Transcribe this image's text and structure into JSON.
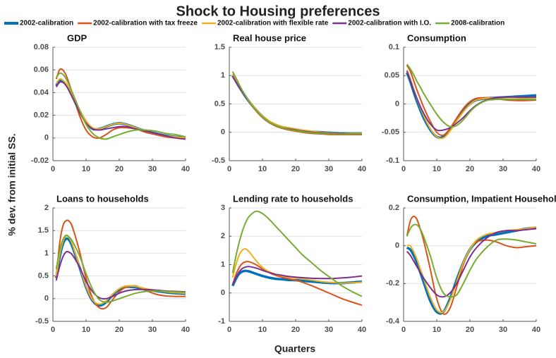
{
  "title": "Shock to Housing preferences",
  "ylabel": "% dev. from initial SS.",
  "xlabel": "Quarters",
  "chart_data": [
    {
      "type": "line",
      "title": "GDP",
      "xlim": [
        0,
        40
      ],
      "xticks": [
        0,
        10,
        20,
        30,
        40
      ],
      "ylim": [
        -0.02,
        0.08
      ],
      "yticks": [
        -0.02,
        0,
        0.02,
        0.04,
        0.06,
        0.08
      ],
      "grid": true,
      "x": [
        1,
        2,
        3,
        4,
        5,
        6,
        8,
        10,
        12,
        14,
        16,
        18,
        20,
        22,
        25,
        28,
        31,
        34,
        37,
        40
      ],
      "series": [
        {
          "name": "2002-calibration",
          "color": "#0072bd",
          "values": [
            0.046,
            0.05,
            0.05,
            0.047,
            0.042,
            0.036,
            0.024,
            0.014,
            0.008,
            0.008,
            0.01,
            0.012,
            0.013,
            0.012,
            0.009,
            0.006,
            0.004,
            0.002,
            0.001,
            0.0
          ]
        },
        {
          "name": "2002-calibration with tax freeze",
          "color": "#d95319",
          "values": [
            0.052,
            0.06,
            0.06,
            0.055,
            0.047,
            0.038,
            0.02,
            0.007,
            0.001,
            0.0,
            0.003,
            0.007,
            0.009,
            0.009,
            0.008,
            0.005,
            0.003,
            0.001,
            0.0,
            -0.001
          ]
        },
        {
          "name": "2002-calibration with flexible rate",
          "color": "#edb120",
          "values": [
            0.048,
            0.052,
            0.051,
            0.048,
            0.043,
            0.037,
            0.025,
            0.015,
            0.009,
            0.008,
            0.01,
            0.012,
            0.013,
            0.012,
            0.009,
            0.006,
            0.004,
            0.002,
            0.001,
            0.0
          ]
        },
        {
          "name": "2002-calibration with I.O.",
          "color": "#7e2f8e",
          "values": [
            0.045,
            0.049,
            0.049,
            0.046,
            0.041,
            0.035,
            0.023,
            0.013,
            0.008,
            0.007,
            0.008,
            0.009,
            0.01,
            0.01,
            0.008,
            0.006,
            0.004,
            0.002,
            0.0,
            -0.001
          ]
        },
        {
          "name": "2008-calibration",
          "color": "#77ac30",
          "values": [
            0.053,
            0.057,
            0.056,
            0.052,
            0.046,
            0.039,
            0.025,
            0.012,
            0.004,
            0.0,
            -0.001,
            0.001,
            0.003,
            0.005,
            0.007,
            0.007,
            0.006,
            0.004,
            0.003,
            0.001
          ]
        }
      ]
    },
    {
      "type": "line",
      "title": "Real house price",
      "xlim": [
        0,
        40
      ],
      "xticks": [
        0,
        10,
        20,
        30,
        40
      ],
      "ylim": [
        -0.5,
        1.5
      ],
      "yticks": [
        -0.5,
        0,
        0.5,
        1,
        1.5
      ],
      "grid": true,
      "x": [
        1,
        2,
        3,
        4,
        5,
        6,
        8,
        10,
        12,
        14,
        16,
        18,
        20,
        22,
        25,
        28,
        31,
        34,
        37,
        40
      ],
      "series": [
        {
          "name": "2002-calibration",
          "color": "#0072bd",
          "values": [
            1.0,
            0.9,
            0.8,
            0.71,
            0.62,
            0.54,
            0.4,
            0.28,
            0.19,
            0.13,
            0.09,
            0.07,
            0.05,
            0.03,
            0.01,
            0.0,
            -0.01,
            -0.02,
            -0.02,
            -0.02
          ]
        },
        {
          "name": "2002-calibration with tax freeze",
          "color": "#d95319",
          "values": [
            1.02,
            0.93,
            0.82,
            0.72,
            0.62,
            0.53,
            0.38,
            0.26,
            0.17,
            0.11,
            0.07,
            0.04,
            0.02,
            0.0,
            -0.02,
            -0.03,
            -0.04,
            -0.04,
            -0.04,
            -0.04
          ]
        },
        {
          "name": "2002-calibration with flexible rate",
          "color": "#edb120",
          "values": [
            1.01,
            0.91,
            0.81,
            0.72,
            0.63,
            0.55,
            0.41,
            0.29,
            0.2,
            0.14,
            0.1,
            0.08,
            0.06,
            0.04,
            0.02,
            0.0,
            -0.01,
            -0.02,
            -0.02,
            -0.02
          ]
        },
        {
          "name": "2002-calibration with I.O.",
          "color": "#7e2f8e",
          "values": [
            0.99,
            0.89,
            0.79,
            0.7,
            0.61,
            0.53,
            0.39,
            0.27,
            0.18,
            0.12,
            0.08,
            0.06,
            0.04,
            0.02,
            0.0,
            -0.01,
            -0.02,
            -0.02,
            -0.03,
            -0.03
          ]
        },
        {
          "name": "2008-calibration",
          "color": "#77ac30",
          "values": [
            1.07,
            0.96,
            0.84,
            0.73,
            0.63,
            0.54,
            0.39,
            0.27,
            0.18,
            0.12,
            0.08,
            0.05,
            0.03,
            0.01,
            -0.01,
            -0.02,
            -0.03,
            -0.03,
            -0.03,
            -0.03
          ]
        }
      ]
    },
    {
      "type": "line",
      "title": "Consumption",
      "xlim": [
        0,
        40
      ],
      "xticks": [
        0,
        10,
        20,
        30,
        40
      ],
      "ylim": [
        -0.1,
        0.1
      ],
      "yticks": [
        -0.1,
        -0.05,
        0,
        0.05,
        0.1
      ],
      "grid": true,
      "x": [
        1,
        2,
        3,
        4,
        5,
        6,
        8,
        10,
        12,
        14,
        16,
        18,
        20,
        22,
        25,
        28,
        31,
        34,
        37,
        40
      ],
      "series": [
        {
          "name": "2002-calibration",
          "color": "#0072bd",
          "values": [
            0.055,
            0.04,
            0.022,
            0.005,
            -0.01,
            -0.024,
            -0.045,
            -0.058,
            -0.058,
            -0.045,
            -0.028,
            -0.012,
            0.0,
            0.007,
            0.01,
            0.011,
            0.012,
            0.013,
            0.014,
            0.015
          ]
        },
        {
          "name": "2002-calibration with tax freeze",
          "color": "#d95319",
          "values": [
            0.068,
            0.058,
            0.042,
            0.025,
            0.01,
            -0.005,
            -0.03,
            -0.05,
            -0.055,
            -0.043,
            -0.025,
            -0.008,
            0.004,
            0.01,
            0.011,
            0.009,
            0.007,
            0.006,
            0.006,
            0.007
          ]
        },
        {
          "name": "2002-calibration with flexible rate",
          "color": "#edb120",
          "values": [
            0.06,
            0.045,
            0.027,
            0.009,
            -0.006,
            -0.02,
            -0.043,
            -0.058,
            -0.06,
            -0.048,
            -0.03,
            -0.014,
            -0.001,
            0.007,
            0.01,
            0.011,
            0.011,
            0.011,
            0.01,
            0.009
          ]
        },
        {
          "name": "2002-calibration with I.O.",
          "color": "#7e2f8e",
          "values": [
            0.058,
            0.042,
            0.025,
            0.01,
            -0.004,
            -0.016,
            -0.035,
            -0.046,
            -0.046,
            -0.042,
            -0.034,
            -0.024,
            -0.012,
            -0.002,
            0.007,
            0.011,
            0.012,
            0.012,
            0.012,
            0.012
          ]
        },
        {
          "name": "2008-calibration",
          "color": "#77ac30",
          "values": [
            0.07,
            0.062,
            0.052,
            0.04,
            0.03,
            0.019,
            0.0,
            -0.018,
            -0.032,
            -0.04,
            -0.038,
            -0.028,
            -0.014,
            -0.003,
            0.006,
            0.008,
            0.008,
            0.008,
            0.008,
            0.008
          ]
        }
      ]
    },
    {
      "type": "line",
      "title": "Loans to households",
      "xlim": [
        0,
        40
      ],
      "xticks": [
        0,
        10,
        20,
        30,
        40
      ],
      "ylim": [
        -0.5,
        2
      ],
      "yticks": [
        -0.5,
        0,
        0.5,
        1,
        1.5,
        2
      ],
      "grid": true,
      "x": [
        1,
        2,
        3,
        4,
        5,
        6,
        8,
        10,
        12,
        14,
        16,
        18,
        20,
        22,
        25,
        28,
        31,
        34,
        37,
        40
      ],
      "series": [
        {
          "name": "2002-calibration",
          "color": "#0072bd",
          "values": [
            0.45,
            0.9,
            1.2,
            1.32,
            1.28,
            1.12,
            0.7,
            0.25,
            -0.05,
            -0.15,
            -0.08,
            0.08,
            0.2,
            0.26,
            0.25,
            0.2,
            0.17,
            0.14,
            0.12,
            0.11
          ]
        },
        {
          "name": "2002-calibration with tax freeze",
          "color": "#d95319",
          "values": [
            0.45,
            1.2,
            1.6,
            1.72,
            1.7,
            1.55,
            1.05,
            0.45,
            0.0,
            -0.2,
            -0.2,
            -0.02,
            0.15,
            0.25,
            0.28,
            0.18,
            0.1,
            0.06,
            0.05,
            0.05
          ]
        },
        {
          "name": "2002-calibration with flexible rate",
          "color": "#edb120",
          "values": [
            0.5,
            0.95,
            1.25,
            1.38,
            1.33,
            1.17,
            0.72,
            0.27,
            -0.03,
            -0.12,
            -0.05,
            0.1,
            0.22,
            0.28,
            0.27,
            0.22,
            0.18,
            0.15,
            0.13,
            0.12
          ]
        },
        {
          "name": "2002-calibration with I.O.",
          "color": "#7e2f8e",
          "values": [
            0.4,
            0.7,
            0.92,
            1.03,
            1.02,
            0.95,
            0.7,
            0.38,
            0.15,
            0.02,
            0.0,
            0.05,
            0.12,
            0.17,
            0.2,
            0.2,
            0.19,
            0.17,
            0.16,
            0.15
          ]
        },
        {
          "name": "2008-calibration",
          "color": "#77ac30",
          "values": [
            0.65,
            1.05,
            1.3,
            1.4,
            1.35,
            1.25,
            0.95,
            0.55,
            0.2,
            -0.02,
            -0.08,
            -0.05,
            0.0,
            0.05,
            0.12,
            0.16,
            0.17,
            0.16,
            0.15,
            0.14
          ]
        }
      ]
    },
    {
      "type": "line",
      "title": "Lending rate to households",
      "xlim": [
        0,
        40
      ],
      "xticks": [
        0,
        10,
        20,
        30,
        40
      ],
      "ylim": [
        -1,
        3
      ],
      "yticks": [
        -1,
        0,
        1,
        2,
        3
      ],
      "grid": true,
      "x": [
        1,
        2,
        3,
        4,
        5,
        6,
        8,
        10,
        12,
        14,
        16,
        18,
        20,
        22,
        25,
        28,
        31,
        34,
        37,
        40
      ],
      "series": [
        {
          "name": "2002-calibration",
          "color": "#0072bd",
          "values": [
            0.25,
            0.5,
            0.68,
            0.76,
            0.78,
            0.76,
            0.68,
            0.6,
            0.54,
            0.5,
            0.48,
            0.46,
            0.45,
            0.43,
            0.4,
            0.37,
            0.35,
            0.35,
            0.37,
            0.4
          ]
        },
        {
          "name": "2002-calibration with tax freeze",
          "color": "#d95319",
          "values": [
            0.3,
            0.65,
            0.9,
            1.05,
            1.1,
            1.1,
            1.0,
            0.85,
            0.72,
            0.62,
            0.55,
            0.5,
            0.45,
            0.38,
            0.25,
            0.1,
            -0.05,
            -0.2,
            -0.32,
            -0.43
          ]
        },
        {
          "name": "2002-calibration with flexible rate",
          "color": "#edb120",
          "values": [
            0.55,
            1.0,
            1.35,
            1.52,
            1.55,
            1.45,
            1.15,
            0.9,
            0.75,
            0.65,
            0.6,
            0.56,
            0.53,
            0.5,
            0.45,
            0.4,
            0.37,
            0.35,
            0.36,
            0.38
          ]
        },
        {
          "name": "2002-calibration with I.O.",
          "color": "#7e2f8e",
          "values": [
            0.3,
            0.55,
            0.75,
            0.87,
            0.92,
            0.93,
            0.88,
            0.8,
            0.72,
            0.66,
            0.62,
            0.58,
            0.56,
            0.54,
            0.52,
            0.51,
            0.51,
            0.53,
            0.56,
            0.6
          ]
        },
        {
          "name": "2008-calibration",
          "color": "#77ac30",
          "values": [
            0.7,
            1.3,
            1.8,
            2.2,
            2.5,
            2.7,
            2.88,
            2.8,
            2.6,
            2.35,
            2.1,
            1.85,
            1.6,
            1.35,
            1.05,
            0.75,
            0.5,
            0.25,
            0.05,
            -0.12
          ]
        }
      ]
    },
    {
      "type": "line",
      "title": "Consumption, Impatient Households",
      "xlim": [
        0,
        40
      ],
      "xticks": [
        0,
        10,
        20,
        30,
        40
      ],
      "ylim": [
        -0.4,
        0.2
      ],
      "yticks": [
        -0.4,
        -0.2,
        0,
        0.2
      ],
      "grid": true,
      "x": [
        1,
        2,
        3,
        4,
        5,
        6,
        8,
        10,
        12,
        14,
        16,
        18,
        20,
        22,
        25,
        28,
        31,
        34,
        37,
        40
      ],
      "series": [
        {
          "name": "2002-calibration",
          "color": "#0072bd",
          "values": [
            -0.01,
            -0.02,
            -0.05,
            -0.09,
            -0.14,
            -0.19,
            -0.29,
            -0.35,
            -0.35,
            -0.28,
            -0.18,
            -0.09,
            -0.02,
            0.02,
            0.05,
            0.06,
            0.07,
            0.08,
            0.09,
            0.095
          ]
        },
        {
          "name": "2002-calibration with tax freeze",
          "color": "#d95319",
          "values": [
            0.05,
            0.13,
            0.155,
            0.14,
            0.09,
            0.03,
            -0.12,
            -0.28,
            -0.36,
            -0.33,
            -0.22,
            -0.1,
            -0.02,
            0.02,
            0.03,
            0.02,
            0.0,
            -0.01,
            -0.005,
            0.0
          ]
        },
        {
          "name": "2002-calibration with flexible rate",
          "color": "#edb120",
          "values": [
            0.0,
            0.0,
            -0.03,
            -0.07,
            -0.12,
            -0.17,
            -0.27,
            -0.34,
            -0.35,
            -0.29,
            -0.19,
            -0.09,
            -0.02,
            0.03,
            0.06,
            0.07,
            0.08,
            0.085,
            0.09,
            0.1
          ]
        },
        {
          "name": "2002-calibration with I.O.",
          "color": "#7e2f8e",
          "values": [
            -0.03,
            -0.05,
            -0.08,
            -0.11,
            -0.14,
            -0.17,
            -0.22,
            -0.26,
            -0.27,
            -0.25,
            -0.2,
            -0.13,
            -0.06,
            -0.01,
            0.04,
            0.07,
            0.08,
            0.08,
            0.085,
            0.09
          ]
        },
        {
          "name": "2008-calibration",
          "color": "#77ac30",
          "values": [
            0.05,
            0.09,
            0.11,
            0.11,
            0.09,
            0.05,
            -0.05,
            -0.17,
            -0.25,
            -0.27,
            -0.26,
            -0.2,
            -0.13,
            -0.07,
            -0.01,
            0.03,
            0.035,
            0.03,
            0.02,
            0.01
          ]
        }
      ]
    }
  ]
}
